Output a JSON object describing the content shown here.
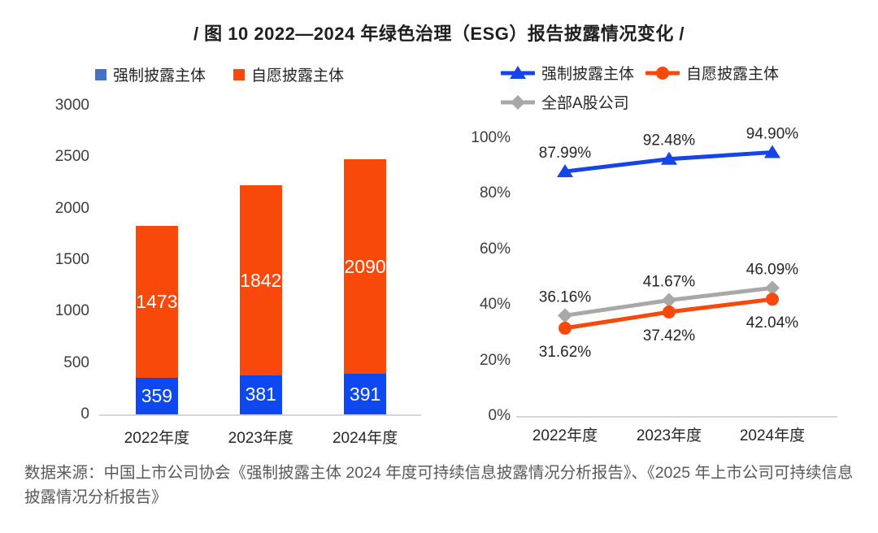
{
  "title": "/ 图 10 2022—2024 年绿色治理（ESG）报告披露情况变化 /",
  "source_note": "数据来源：中国上市公司协会《强制披露主体 2024 年度可持续信息披露情况分析报告》、《2025 年上市公司可持续信息披露情况分析报告》",
  "colors": {
    "legend_blue": "#4472c4",
    "bar_blue": "#0d48f0",
    "orange": "#f8490b",
    "line_blue": "#1744e6",
    "gray": "#a8a8a8",
    "axis_line": "#d6d6d6",
    "bar_label_text": "#ffffff",
    "tick_text": "#3d3d3d"
  },
  "chart_data": [
    {
      "type": "bar",
      "stacked": true,
      "title": "",
      "categories": [
        "2022年度",
        "2023年度",
        "2024年度"
      ],
      "series": [
        {
          "name": "强制披露主体",
          "values": [
            359,
            381,
            391
          ],
          "color": "#0d48f0"
        },
        {
          "name": "自愿披露主体",
          "values": [
            1473,
            1842,
            2090
          ],
          "color": "#f8490b"
        }
      ],
      "xlabel": "",
      "ylabel": "",
      "ylim": [
        0,
        3000
      ],
      "yticks": [
        0,
        500,
        1000,
        1500,
        2000,
        2500,
        3000
      ],
      "grid": false,
      "legend_position": "top",
      "bar_labels_shown": true
    },
    {
      "type": "line",
      "title": "",
      "categories": [
        "2022年度",
        "2023年度",
        "2024年度"
      ],
      "series": [
        {
          "name": "强制披露主体",
          "values": [
            87.99,
            92.48,
            94.9
          ],
          "labels": [
            "87.99%",
            "92.48%",
            "94.90%"
          ],
          "color": "#1744e6",
          "marker": "triangle",
          "label_side": "above"
        },
        {
          "name": "自愿披露主体",
          "values": [
            31.62,
            37.42,
            42.04
          ],
          "labels": [
            "31.62%",
            "37.42%",
            "42.04%"
          ],
          "color": "#f8490b",
          "marker": "circle",
          "label_side": "below"
        },
        {
          "name": "全部A股公司",
          "values": [
            36.16,
            41.67,
            46.09
          ],
          "labels": [
            "36.16%",
            "41.67%",
            "46.09%"
          ],
          "color": "#a8a8a8",
          "marker": "diamond",
          "label_side": "above"
        }
      ],
      "xlabel": "",
      "ylabel": "",
      "ylim": [
        0,
        100
      ],
      "yticks": [
        "0%",
        "20%",
        "40%",
        "60%",
        "80%",
        "100%"
      ],
      "grid": false,
      "legend_position": "top",
      "point_labels_shown": true
    }
  ]
}
